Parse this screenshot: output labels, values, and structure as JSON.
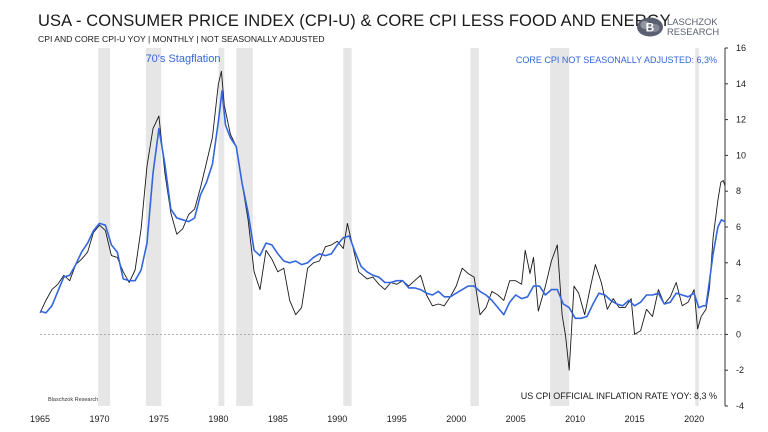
{
  "header": {
    "title": "USA - CONSUMER PRICE INDEX (CPI-U) & CORE CPI LESS FOOD AND ENERGY",
    "subtitle": "CPI AND CORE CPI-U YOY | MONTHLY | NOT SEASONALLY ADJUSTED"
  },
  "logo": {
    "line1": "LASCHZOK",
    "line2": "RESEARCH",
    "mark": "B"
  },
  "colors": {
    "cpi": "#1a1a1a",
    "core": "#3366dd",
    "recession": "#e6e6e6",
    "zero": "#999999"
  },
  "chart_data": {
    "type": "line",
    "title": "USA - CONSUMER PRICE INDEX (CPI-U) & CORE CPI LESS FOOD AND ENERGY",
    "xlim": [
      1965,
      2022.6
    ],
    "ylim": [
      -4,
      16
    ],
    "x_ticks": [
      1965,
      1970,
      1975,
      1980,
      1985,
      1990,
      1995,
      2000,
      2005,
      2010,
      2015,
      2020
    ],
    "y_ticks": [
      16,
      14,
      12,
      10,
      8,
      6,
      4,
      2,
      0,
      -2,
      -4
    ],
    "recessions": [
      [
        1969.9,
        1970.9
      ],
      [
        1973.9,
        1975.2
      ],
      [
        1980.0,
        1980.5
      ],
      [
        1981.5,
        1982.9
      ],
      [
        1990.5,
        1991.2
      ],
      [
        2001.2,
        2001.9
      ],
      [
        2007.9,
        2009.5
      ],
      [
        2020.1,
        2020.4
      ]
    ],
    "annotations": {
      "stagflation": "70's Stagflation",
      "core_label": "CORE CPI NOT SEASONALLY ADJUSTED: 6,3%",
      "cpi_label": "US CPI OFFICIAL INFLATION RATE YOY: 8,3 %",
      "source": "Blaschzok Research"
    },
    "series": [
      {
        "name": "CPI-U YoY",
        "x": [
          1965.0,
          1965.5,
          1966.0,
          1966.5,
          1967.0,
          1967.5,
          1968.0,
          1968.5,
          1969.0,
          1969.5,
          1970.0,
          1970.5,
          1971.0,
          1971.5,
          1972.0,
          1972.5,
          1973.0,
          1973.5,
          1974.0,
          1974.5,
          1975.0,
          1975.5,
          1976.0,
          1976.5,
          1977.0,
          1977.5,
          1978.0,
          1978.5,
          1979.0,
          1979.5,
          1980.0,
          1980.25,
          1980.5,
          1981.0,
          1981.5,
          1982.0,
          1982.5,
          1983.0,
          1983.5,
          1984.0,
          1984.5,
          1985.0,
          1985.5,
          1986.0,
          1986.5,
          1987.0,
          1987.5,
          1988.0,
          1988.5,
          1989.0,
          1989.5,
          1990.0,
          1990.5,
          1990.85,
          1991.3,
          1991.8,
          1992.5,
          1993.0,
          1993.5,
          1994.0,
          1994.5,
          1995.0,
          1995.5,
          1996.0,
          1996.5,
          1997.0,
          1997.5,
          1998.0,
          1998.5,
          1999.0,
          1999.5,
          2000.0,
          2000.5,
          2001.0,
          2001.5,
          2002.0,
          2002.5,
          2003.0,
          2003.5,
          2004.0,
          2004.5,
          2005.0,
          2005.5,
          2005.8,
          2006.2,
          2006.5,
          2006.9,
          2007.5,
          2008.0,
          2008.5,
          2008.9,
          2009.2,
          2009.5,
          2009.9,
          2010.3,
          2010.8,
          2011.3,
          2011.7,
          2012.2,
          2012.7,
          2013.2,
          2013.7,
          2014.2,
          2014.7,
          2015.0,
          2015.5,
          2016.0,
          2016.5,
          2017.0,
          2017.5,
          2018.0,
          2018.5,
          2019.0,
          2019.5,
          2020.0,
          2020.3,
          2020.6,
          2021.0,
          2021.3,
          2021.6,
          2022.0,
          2022.25,
          2022.45,
          2022.6
        ],
        "values": [
          1.2,
          1.9,
          2.5,
          2.8,
          3.3,
          3.0,
          3.9,
          4.2,
          4.6,
          5.7,
          6.1,
          5.8,
          4.4,
          4.3,
          3.5,
          2.9,
          3.6,
          5.9,
          9.4,
          11.5,
          12.2,
          9.0,
          6.8,
          5.6,
          5.9,
          6.7,
          7.0,
          8.2,
          9.6,
          11.0,
          14.0,
          14.7,
          12.8,
          11.2,
          10.5,
          8.4,
          6.4,
          3.5,
          2.5,
          4.7,
          4.2,
          3.5,
          3.7,
          1.9,
          1.1,
          1.5,
          3.7,
          4.0,
          4.1,
          4.9,
          5.0,
          5.2,
          4.8,
          6.2,
          4.9,
          3.5,
          3.1,
          3.2,
          2.8,
          2.5,
          2.9,
          2.8,
          3.0,
          2.7,
          3.0,
          3.3,
          2.2,
          1.6,
          1.7,
          1.6,
          2.1,
          2.7,
          3.7,
          3.4,
          3.2,
          1.1,
          1.5,
          2.4,
          2.2,
          1.9,
          3.0,
          3.0,
          2.8,
          4.7,
          3.4,
          4.3,
          1.3,
          2.7,
          4.1,
          5.0,
          1.1,
          -0.1,
          -2.0,
          2.7,
          2.3,
          1.1,
          2.7,
          3.9,
          2.9,
          1.4,
          2.0,
          1.5,
          1.5,
          2.0,
          0.0,
          0.2,
          1.4,
          1.0,
          2.5,
          1.7,
          2.1,
          2.9,
          1.6,
          1.8,
          2.5,
          0.3,
          1.0,
          1.4,
          2.6,
          5.4,
          7.5,
          8.5,
          8.6,
          8.3
        ]
      },
      {
        "name": "Core CPI YoY (NSA)",
        "x": [
          1965.0,
          1965.5,
          1966.0,
          1966.5,
          1967.0,
          1967.5,
          1968.0,
          1968.5,
          1969.0,
          1969.5,
          1970.0,
          1970.5,
          1971.0,
          1971.5,
          1972.0,
          1972.5,
          1973.0,
          1973.5,
          1974.0,
          1974.5,
          1975.0,
          1975.5,
          1976.0,
          1976.5,
          1977.0,
          1977.5,
          1978.0,
          1978.5,
          1979.0,
          1979.5,
          1980.0,
          1980.3,
          1980.6,
          1981.0,
          1981.5,
          1982.0,
          1982.5,
          1983.0,
          1983.5,
          1984.0,
          1984.5,
          1985.0,
          1985.5,
          1986.0,
          1986.5,
          1987.0,
          1987.5,
          1988.0,
          1988.5,
          1989.0,
          1989.5,
          1990.0,
          1990.5,
          1991.0,
          1991.5,
          1992.0,
          1992.5,
          1993.0,
          1993.5,
          1994.0,
          1994.5,
          1995.0,
          1995.5,
          1996.0,
          1996.5,
          1997.0,
          1997.5,
          1998.0,
          1998.5,
          1999.0,
          1999.5,
          2000.0,
          2000.5,
          2001.0,
          2001.5,
          2002.0,
          2002.5,
          2003.0,
          2003.5,
          2004.0,
          2004.5,
          2005.0,
          2005.5,
          2006.0,
          2006.5,
          2007.0,
          2007.5,
          2008.0,
          2008.5,
          2009.0,
          2009.5,
          2010.0,
          2010.5,
          2011.0,
          2011.5,
          2012.0,
          2012.5,
          2013.0,
          2013.5,
          2014.0,
          2014.5,
          2015.0,
          2015.5,
          2016.0,
          2016.5,
          2017.0,
          2017.5,
          2018.0,
          2018.5,
          2019.0,
          2019.5,
          2020.0,
          2020.4,
          2020.8,
          2021.0,
          2021.3,
          2021.6,
          2022.0,
          2022.3,
          2022.6
        ],
        "values": [
          1.3,
          1.2,
          1.6,
          2.4,
          3.2,
          3.3,
          3.9,
          4.6,
          5.1,
          5.8,
          6.2,
          6.1,
          5.0,
          4.6,
          3.1,
          3.0,
          3.0,
          3.6,
          5.1,
          9.0,
          11.5,
          9.5,
          7.0,
          6.5,
          6.4,
          6.3,
          6.5,
          7.8,
          8.5,
          9.5,
          11.9,
          13.6,
          11.7,
          11.0,
          10.5,
          8.4,
          6.8,
          4.7,
          4.4,
          5.1,
          5.0,
          4.5,
          4.1,
          4.0,
          4.1,
          3.9,
          4.0,
          4.3,
          4.5,
          4.4,
          4.5,
          5.0,
          5.4,
          5.5,
          4.6,
          3.8,
          3.5,
          3.3,
          3.2,
          2.9,
          2.9,
          3.0,
          3.0,
          2.6,
          2.6,
          2.5,
          2.3,
          2.2,
          2.4,
          2.1,
          2.1,
          2.3,
          2.5,
          2.7,
          2.7,
          2.4,
          2.2,
          1.9,
          1.5,
          1.1,
          1.8,
          2.2,
          2.0,
          2.1,
          2.7,
          2.7,
          2.2,
          2.5,
          2.5,
          1.7,
          1.5,
          0.9,
          0.9,
          1.0,
          1.7,
          2.3,
          2.2,
          1.9,
          1.7,
          1.6,
          1.9,
          1.6,
          1.8,
          2.2,
          2.2,
          2.3,
          1.7,
          1.8,
          2.3,
          2.2,
          2.1,
          2.3,
          1.5,
          1.6,
          1.6,
          3.0,
          4.5,
          6.0,
          6.4,
          6.3
        ]
      }
    ]
  }
}
